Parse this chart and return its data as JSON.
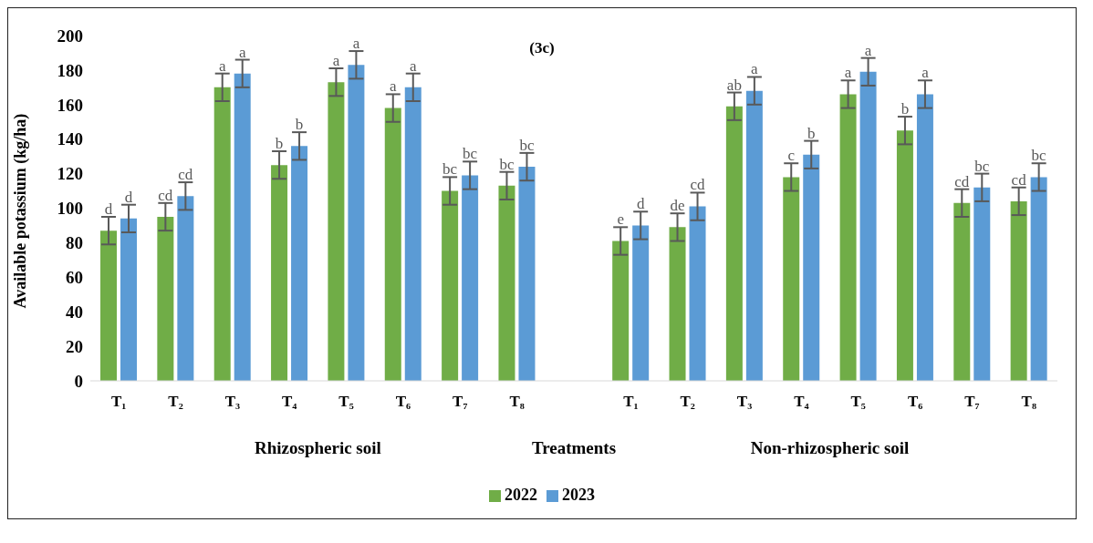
{
  "chart_data": {
    "type": "bar",
    "title": "(3c)",
    "xlabel": "Treatments",
    "ylabel": "Available potassium (kg/ha)",
    "annotations": [
      "Rhizospheric soil",
      "Non-rhizospheric soil"
    ],
    "categories": [
      "T₁",
      "T₂",
      "T₃",
      "T₄",
      "T₅",
      "T₆",
      "T₇",
      "T₈",
      null,
      "T₁",
      "T₂",
      "T₃",
      "T₄",
      "T₅",
      "T₆",
      "T₇",
      "T₈"
    ],
    "series": [
      {
        "name": "2022",
        "color": "#70ad47",
        "values": [
          87,
          95,
          170,
          125,
          173,
          158,
          110,
          113,
          null,
          81,
          89,
          159,
          118,
          166,
          145,
          103,
          104
        ],
        "errors": [
          8,
          8,
          8,
          8,
          8,
          8,
          8,
          8,
          null,
          8,
          8,
          8,
          8,
          8,
          8,
          8,
          8
        ],
        "value_labels": [
          "d",
          "cd",
          "a",
          "b",
          "a",
          "a",
          "bc",
          "bc",
          null,
          "e",
          "de",
          "ab",
          "c",
          "a",
          "b",
          "cd",
          "cd"
        ]
      },
      {
        "name": "2023",
        "color": "#5b9bd5",
        "values": [
          94,
          107,
          178,
          136,
          183,
          170,
          119,
          124,
          null,
          90,
          101,
          168,
          131,
          179,
          166,
          112,
          118
        ],
        "errors": [
          8,
          8,
          8,
          8,
          8,
          8,
          8,
          8,
          null,
          8,
          8,
          8,
          8,
          8,
          8,
          8,
          8
        ],
        "value_labels": [
          "d",
          "cd",
          "a",
          "b",
          "a",
          "a",
          "bc",
          "bc",
          null,
          "d",
          "cd",
          "a",
          "b",
          "a",
          "a",
          "bc",
          "bc"
        ]
      }
    ],
    "ylim": [
      0,
      200
    ],
    "yticks": [
      0,
      20,
      40,
      60,
      80,
      100,
      120,
      140,
      160,
      180,
      200
    ],
    "grid": false,
    "legend": "bottom"
  }
}
